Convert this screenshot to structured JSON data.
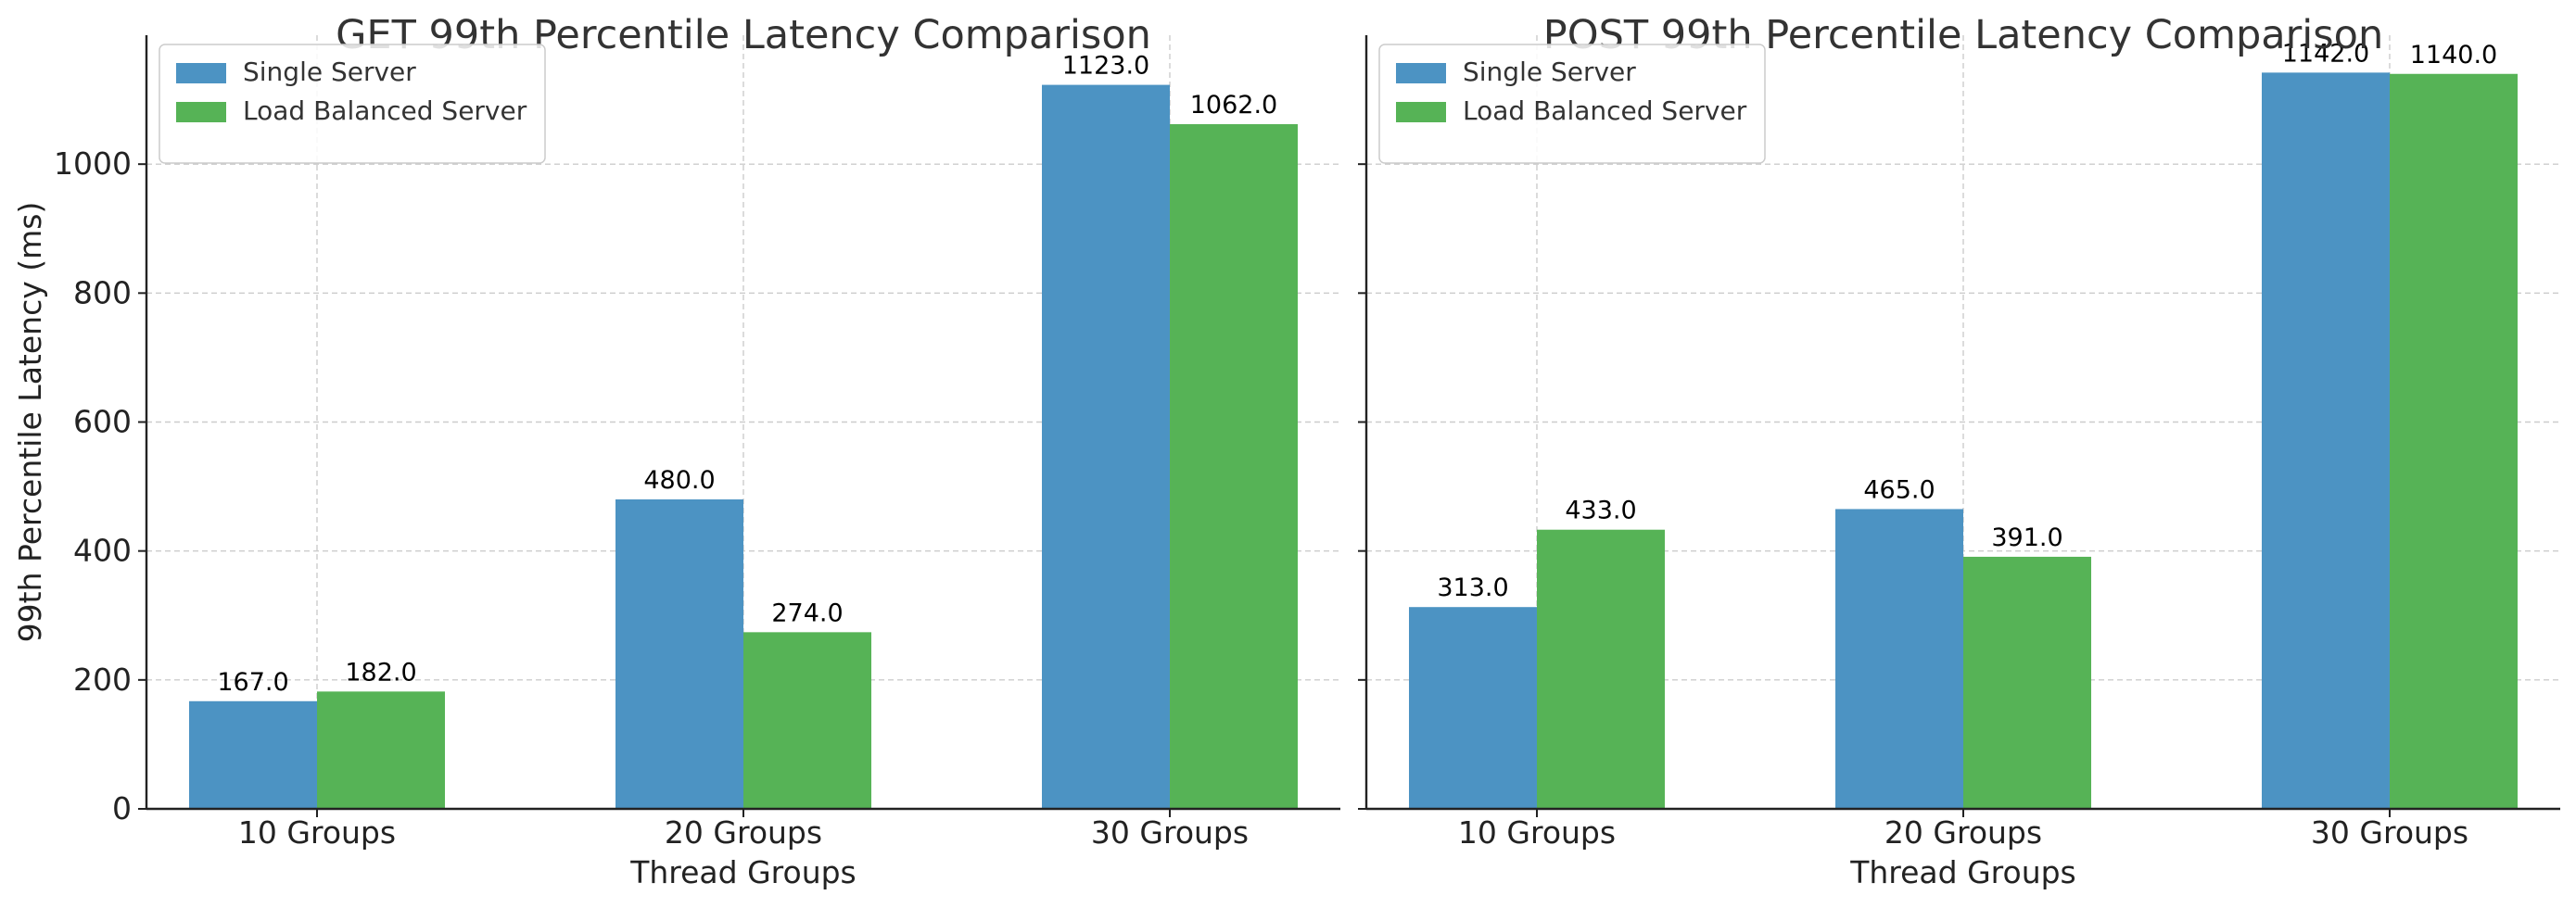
{
  "colors": {
    "single": "#4c93c3",
    "balanced": "#56b356"
  },
  "chart_data": [
    {
      "type": "bar",
      "title": "GET 99th Percentile Latency Comparison",
      "xlabel": "Thread Groups",
      "ylabel": "99th Percentile Latency (ms)",
      "categories": [
        "10 Groups",
        "20 Groups",
        "30 Groups"
      ],
      "series": [
        {
          "name": "Single Server",
          "values": [
            167.0,
            480.0,
            1123.0
          ],
          "labels": [
            "167.0",
            "480.0",
            "1123.0"
          ]
        },
        {
          "name": "Load Balanced Server",
          "values": [
            182.0,
            274.0,
            1062.0
          ],
          "labels": [
            "182.0",
            "274.0",
            "1062.0"
          ]
        }
      ],
      "ylim": [
        0,
        1200
      ],
      "yticks": [
        0,
        200,
        400,
        600,
        800,
        1000
      ],
      "grid": true,
      "legend": "upper-left"
    },
    {
      "type": "bar",
      "title": "POST 99th Percentile Latency Comparison",
      "xlabel": "Thread Groups",
      "ylabel": "",
      "categories": [
        "10 Groups",
        "20 Groups",
        "30 Groups"
      ],
      "series": [
        {
          "name": "Single Server",
          "values": [
            313.0,
            465.0,
            1142.0
          ],
          "labels": [
            "313.0",
            "465.0",
            "1142.0"
          ]
        },
        {
          "name": "Load Balanced Server",
          "values": [
            433.0,
            391.0,
            1140.0
          ],
          "labels": [
            "433.0",
            "391.0",
            "1140.0"
          ]
        }
      ],
      "ylim": [
        0,
        1200
      ],
      "yticks": [
        0,
        200,
        400,
        600,
        800,
        1000
      ],
      "ytick_labels_shown": false,
      "grid": true,
      "legend": "upper-left"
    }
  ]
}
